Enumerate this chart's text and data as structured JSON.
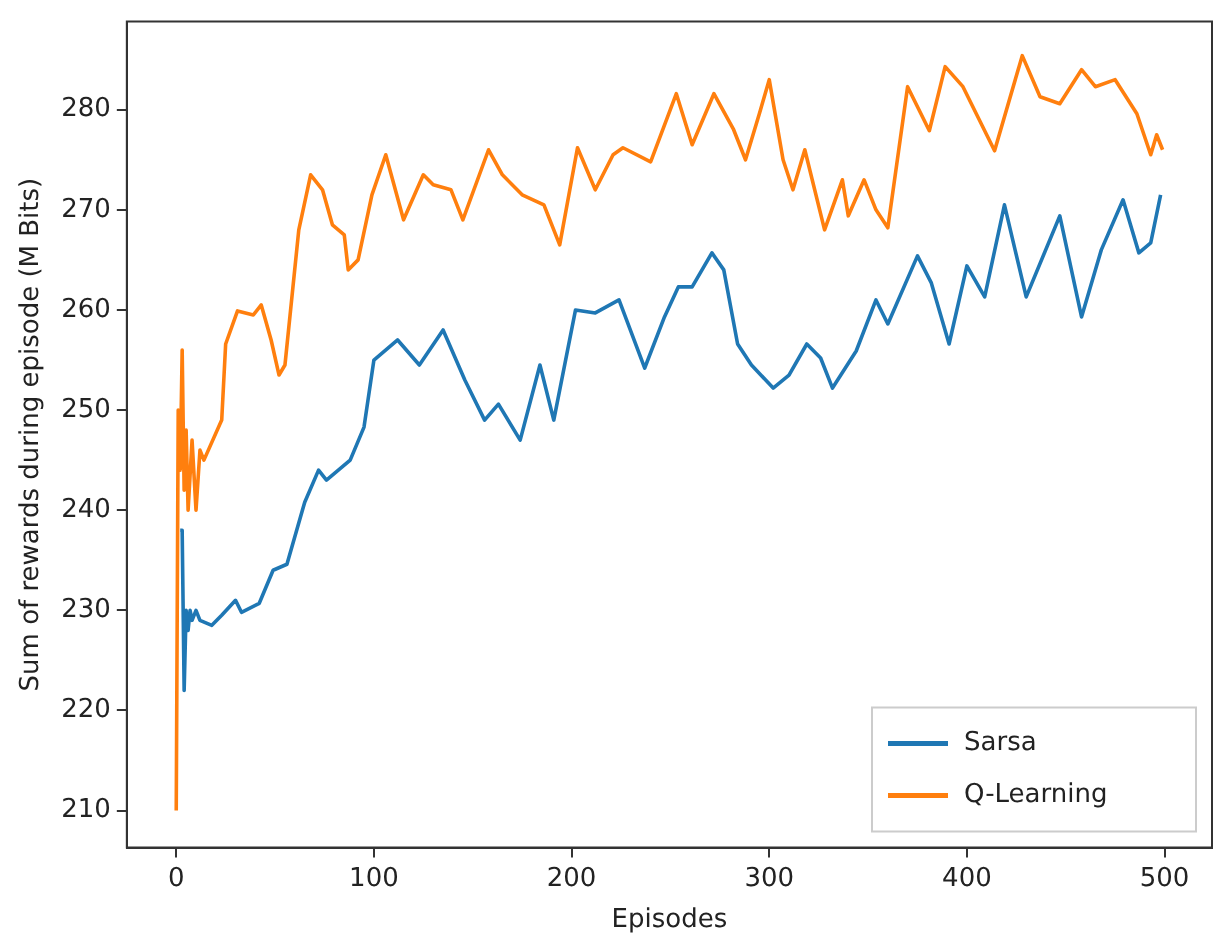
{
  "chart_data": {
    "type": "line",
    "xlabel": "Episodes",
    "ylabel": "Sum of rewards during episode (M Bits)",
    "xlim": [
      -25,
      524
    ],
    "ylim": [
      206.3,
      288.8
    ],
    "xticks": [
      0,
      100,
      200,
      300,
      400,
      500
    ],
    "yticks": [
      210,
      220,
      230,
      240,
      250,
      260,
      270,
      280
    ],
    "grid": false,
    "legend": "bottom right",
    "marker": "none",
    "line_style": "solid",
    "series": [
      {
        "name": "Sarsa",
        "color": "#1f77b4",
        "x": [
          2,
          3,
          4,
          5,
          6,
          7,
          8,
          10,
          12,
          18,
          23,
          30,
          33,
          42,
          49,
          56,
          65,
          72,
          76,
          88,
          95,
          100,
          112,
          123,
          135,
          146,
          156,
          163,
          174,
          184,
          191,
          202,
          212,
          224,
          237,
          247,
          254,
          261,
          271,
          277,
          284,
          291,
          302,
          310,
          319,
          326,
          332,
          344,
          354,
          360,
          375,
          382,
          391,
          400,
          409,
          419,
          430,
          447,
          458,
          468,
          479,
          487,
          493,
          498
        ],
        "values": [
          238,
          238,
          222,
          230,
          228,
          230,
          229,
          230,
          229,
          228.5,
          229.5,
          231,
          229.8,
          230.7,
          234,
          234.6,
          240.8,
          244,
          243,
          245,
          248.3,
          255,
          257,
          254.5,
          258,
          253,
          249,
          250.6,
          247,
          254.5,
          249,
          260,
          259.7,
          261,
          254.2,
          259.3,
          262.3,
          262.3,
          265.7,
          264,
          256.6,
          254.5,
          252.2,
          253.5,
          256.6,
          255.2,
          252.2,
          255.9,
          261,
          258.6,
          265.4,
          262.7,
          256.6,
          264.4,
          261.3,
          270.5,
          261.3,
          269.4,
          259.3,
          266,
          271,
          265.7,
          266.7,
          271.5
        ]
      },
      {
        "name": "Q-Learning",
        "color": "#ff7f0e",
        "x": [
          0,
          1,
          2,
          3,
          4,
          5,
          6,
          8,
          10,
          12,
          14,
          23,
          25,
          31,
          39,
          43,
          48,
          52,
          55,
          62,
          68,
          74,
          79,
          85,
          87,
          92,
          99,
          106,
          115,
          125,
          130,
          139,
          145,
          158,
          165,
          175,
          186,
          194,
          203,
          212,
          221,
          226,
          240,
          253,
          261,
          272,
          282,
          288,
          295,
          300,
          307,
          312,
          318,
          328,
          337,
          340,
          348,
          354,
          360,
          370,
          381,
          389,
          398,
          414,
          428,
          437,
          447,
          458,
          465,
          475,
          486,
          493,
          496,
          499
        ],
        "values": [
          210,
          250,
          244,
          256,
          242,
          248,
          240,
          247,
          240,
          246,
          245,
          249,
          256.6,
          259.9,
          259.5,
          260.5,
          257,
          253.5,
          254.5,
          268,
          273.5,
          272,
          268.5,
          267.5,
          264,
          265,
          271.5,
          275.5,
          269,
          273.5,
          272.5,
          272,
          269,
          276,
          273.5,
          271.5,
          270.5,
          266.5,
          276.2,
          272,
          275.5,
          276.2,
          274.8,
          281.6,
          276.5,
          281.6,
          278,
          275,
          279.6,
          283,
          275,
          272,
          276,
          268,
          273,
          269.4,
          273,
          270,
          268.2,
          282.3,
          277.9,
          284.3,
          282.3,
          275.9,
          285.4,
          281.3,
          280.6,
          284,
          282.3,
          283,
          279.6,
          275.5,
          277.5,
          276
        ]
      }
    ]
  }
}
